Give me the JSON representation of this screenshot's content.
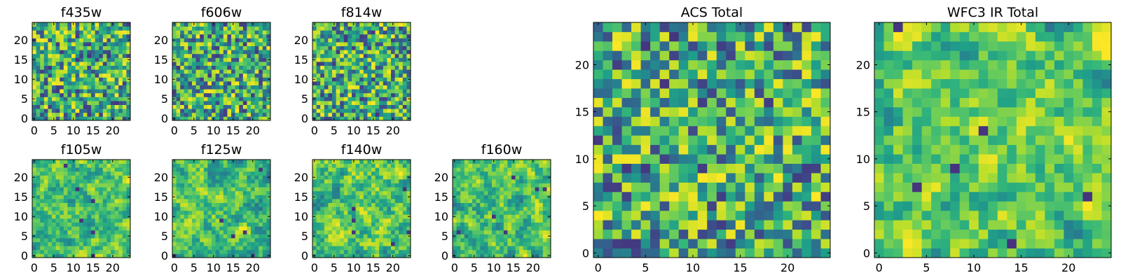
{
  "chart_data": [
    {
      "type": "heatmap",
      "title": "f435w",
      "xticks": [
        "0",
        "5",
        "10",
        "15",
        "20"
      ],
      "yticks": [
        "0",
        "5",
        "10",
        "15",
        "20"
      ],
      "xlim": [
        0,
        25
      ],
      "ylim": [
        0,
        25
      ],
      "grid_size": 25,
      "colormap": "viridis",
      "pattern": "noise",
      "seed": 11
    },
    {
      "type": "heatmap",
      "title": "f606w",
      "xticks": [
        "0",
        "5",
        "10",
        "15",
        "20"
      ],
      "yticks": [
        "0",
        "5",
        "10",
        "15",
        "20"
      ],
      "xlim": [
        0,
        25
      ],
      "ylim": [
        0,
        25
      ],
      "grid_size": 25,
      "colormap": "viridis",
      "pattern": "noise",
      "seed": 23
    },
    {
      "type": "heatmap",
      "title": "f814w",
      "xticks": [
        "0",
        "5",
        "10",
        "15",
        "20"
      ],
      "yticks": [
        "0",
        "5",
        "10",
        "15",
        "20"
      ],
      "xlim": [
        0,
        25
      ],
      "ylim": [
        0,
        25
      ],
      "grid_size": 25,
      "colormap": "viridis",
      "pattern": "noise",
      "seed": 37
    },
    {
      "type": "heatmap",
      "title": "f105w",
      "xticks": [
        "0",
        "5",
        "10",
        "15",
        "20"
      ],
      "yticks": [
        "0",
        "5",
        "10",
        "15",
        "20"
      ],
      "xlim": [
        0,
        25
      ],
      "ylim": [
        0,
        25
      ],
      "grid_size": 25,
      "colormap": "viridis",
      "pattern": "smooth",
      "seed": 41
    },
    {
      "type": "heatmap",
      "title": "f125w",
      "xticks": [
        "0",
        "5",
        "10",
        "15",
        "20"
      ],
      "yticks": [
        "0",
        "5",
        "10",
        "15",
        "20"
      ],
      "xlim": [
        0,
        25
      ],
      "ylim": [
        0,
        25
      ],
      "grid_size": 25,
      "colormap": "viridis",
      "pattern": "smooth",
      "seed": 53
    },
    {
      "type": "heatmap",
      "title": "f140w",
      "xticks": [
        "0",
        "5",
        "10",
        "15",
        "20"
      ],
      "yticks": [
        "0",
        "5",
        "10",
        "15",
        "20"
      ],
      "xlim": [
        0,
        25
      ],
      "ylim": [
        0,
        25
      ],
      "grid_size": 25,
      "colormap": "viridis",
      "pattern": "smooth",
      "seed": 67
    },
    {
      "type": "heatmap",
      "title": "f160w",
      "xticks": [
        "0",
        "5",
        "10",
        "15",
        "20"
      ],
      "yticks": [
        "0",
        "5",
        "10",
        "15",
        "20"
      ],
      "xlim": [
        0,
        25
      ],
      "ylim": [
        0,
        25
      ],
      "grid_size": 25,
      "colormap": "viridis",
      "pattern": "smooth",
      "seed": 79
    },
    {
      "type": "heatmap",
      "title": "ACS Total",
      "xticks": [
        "0",
        "5",
        "10",
        "15",
        "20"
      ],
      "yticks": [
        "0",
        "5",
        "10",
        "15",
        "20"
      ],
      "xlim": [
        0,
        25
      ],
      "ylim": [
        0,
        25
      ],
      "grid_size": 25,
      "colormap": "viridis",
      "pattern": "noise",
      "seed": 97
    },
    {
      "type": "heatmap",
      "title": "WFC3 IR Total",
      "xticks": [
        "0",
        "5",
        "10",
        "15",
        "20"
      ],
      "yticks": [
        "0",
        "5",
        "10",
        "15",
        "20"
      ],
      "xlim": [
        0,
        25
      ],
      "ylim": [
        0,
        25
      ],
      "grid_size": 25,
      "colormap": "viridis",
      "pattern": "smooth",
      "seed": 113
    }
  ]
}
